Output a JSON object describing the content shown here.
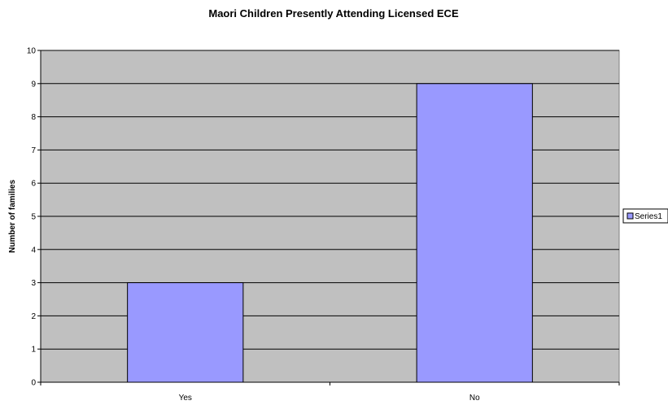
{
  "chart_data": {
    "type": "bar",
    "title": "Maori Children Presently Attending Licensed ECE",
    "xlabel": "",
    "ylabel": "Number of families",
    "categories": [
      "Yes",
      "No"
    ],
    "series": [
      {
        "name": "Series1",
        "values": [
          3,
          9
        ]
      }
    ],
    "ylim": [
      0,
      10
    ],
    "ytick_step": 1,
    "grid": true,
    "legend_position": "right",
    "colors": {
      "bar": "#9999ff",
      "plot_background": "#c0c0c0",
      "grid": "#000000"
    }
  }
}
